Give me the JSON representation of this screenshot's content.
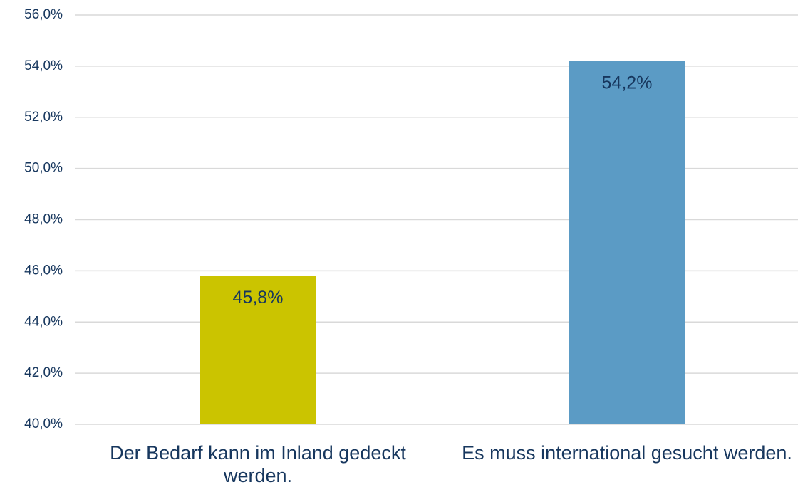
{
  "chart_data": {
    "type": "bar",
    "categories": [
      "Der Bedarf kann im Inland gedeckt werden.",
      "Es muss international gesucht werden."
    ],
    "values": [
      45.8,
      54.2
    ],
    "value_labels": [
      "45,8%",
      "54,2%"
    ],
    "colors": [
      "#cbc400",
      "#5b9bc5"
    ],
    "ylim": [
      40,
      56
    ],
    "yticks": [
      {
        "value": 40,
        "label": "40,0%"
      },
      {
        "value": 42,
        "label": "42,0%"
      },
      {
        "value": 44,
        "label": "44,0%"
      },
      {
        "value": 46,
        "label": "46,0%"
      },
      {
        "value": 48,
        "label": "48,0%"
      },
      {
        "value": 50,
        "label": "50,0%"
      },
      {
        "value": 52,
        "label": "52,0%"
      },
      {
        "value": 54,
        "label": "54,0%"
      },
      {
        "value": 56,
        "label": "56,0%"
      }
    ],
    "grid": true
  }
}
